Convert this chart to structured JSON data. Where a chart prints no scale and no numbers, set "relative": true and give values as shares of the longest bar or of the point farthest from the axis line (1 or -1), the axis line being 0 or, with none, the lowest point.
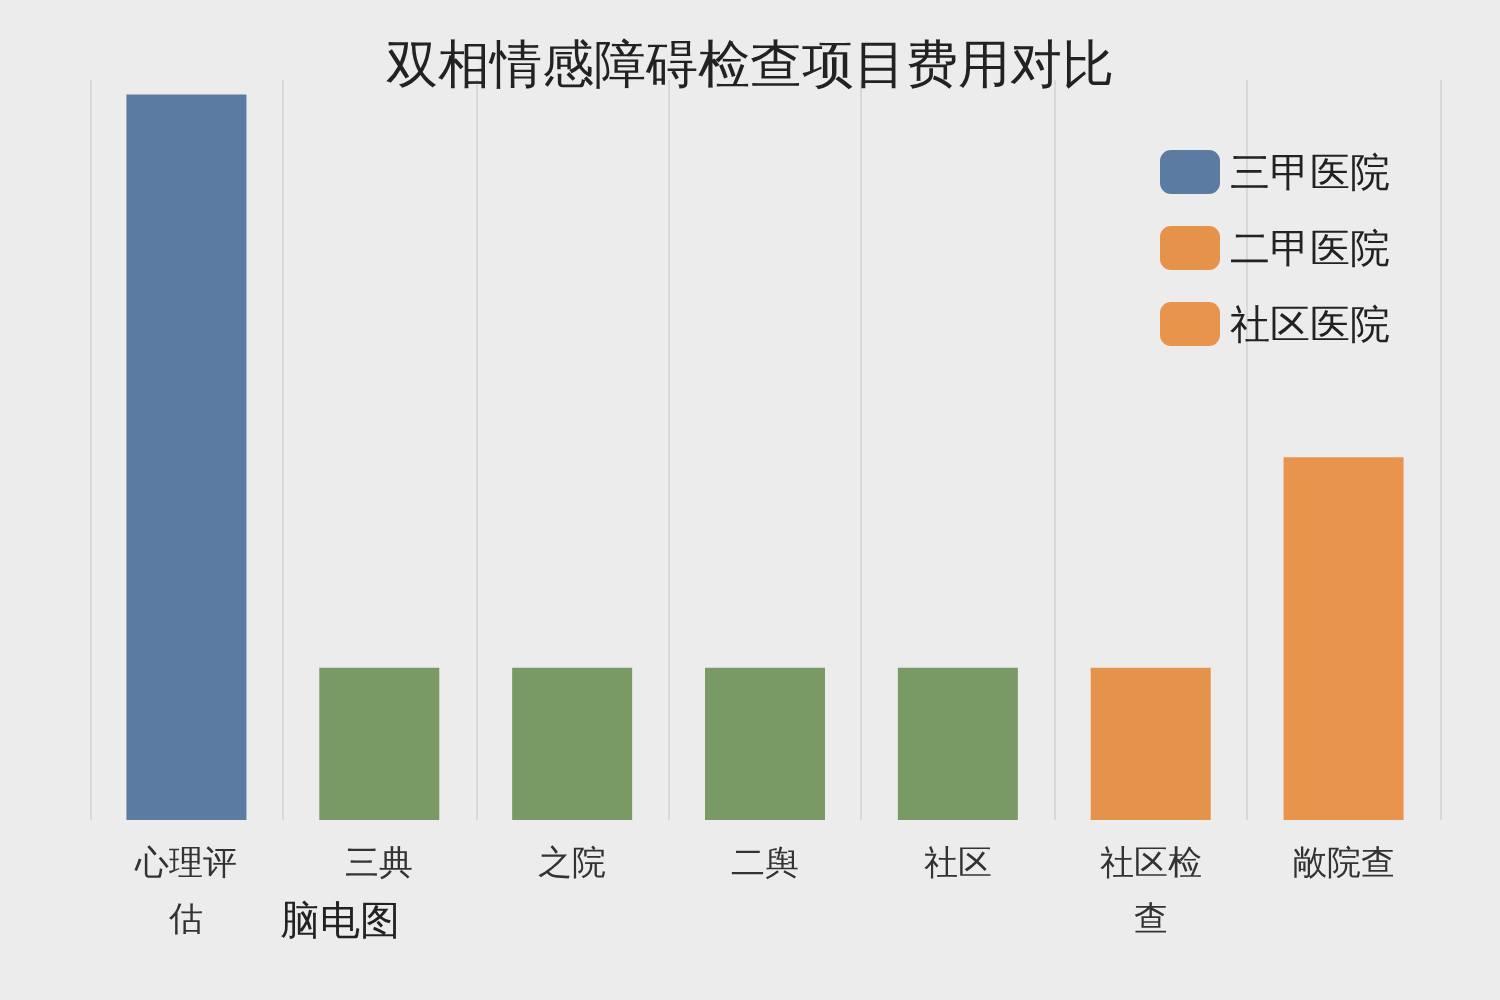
{
  "chart_data": {
    "type": "bar",
    "title": "双相情感障碍检查项目费用对比",
    "relative": true,
    "stacked": true,
    "categories": [
      "心理评估",
      "三典",
      "之院",
      "二舆",
      "社区",
      "社区检查",
      "敞院查"
    ],
    "series": [
      {
        "name": "三甲医院",
        "color": "#5b7ba3",
        "values": [
          1,
          null,
          null,
          null,
          null,
          null,
          null
        ]
      },
      {
        "color": "#7a9a65",
        "values": [
          null,
          0.21,
          0.21,
          0.21,
          0.21,
          null,
          null
        ]
      },
      {
        "name": "二甲医院",
        "color": "#e5924a",
        "values": [
          null,
          null,
          null,
          null,
          null,
          0.21,
          null
        ]
      },
      {
        "name": "社区医院",
        "color": "#e8944c",
        "values": [
          null,
          null,
          null,
          null,
          null,
          null,
          0.5
        ]
      }
    ],
    "annotations": [
      "脑电图"
    ],
    "grid": "x",
    "legend": "top right"
  }
}
